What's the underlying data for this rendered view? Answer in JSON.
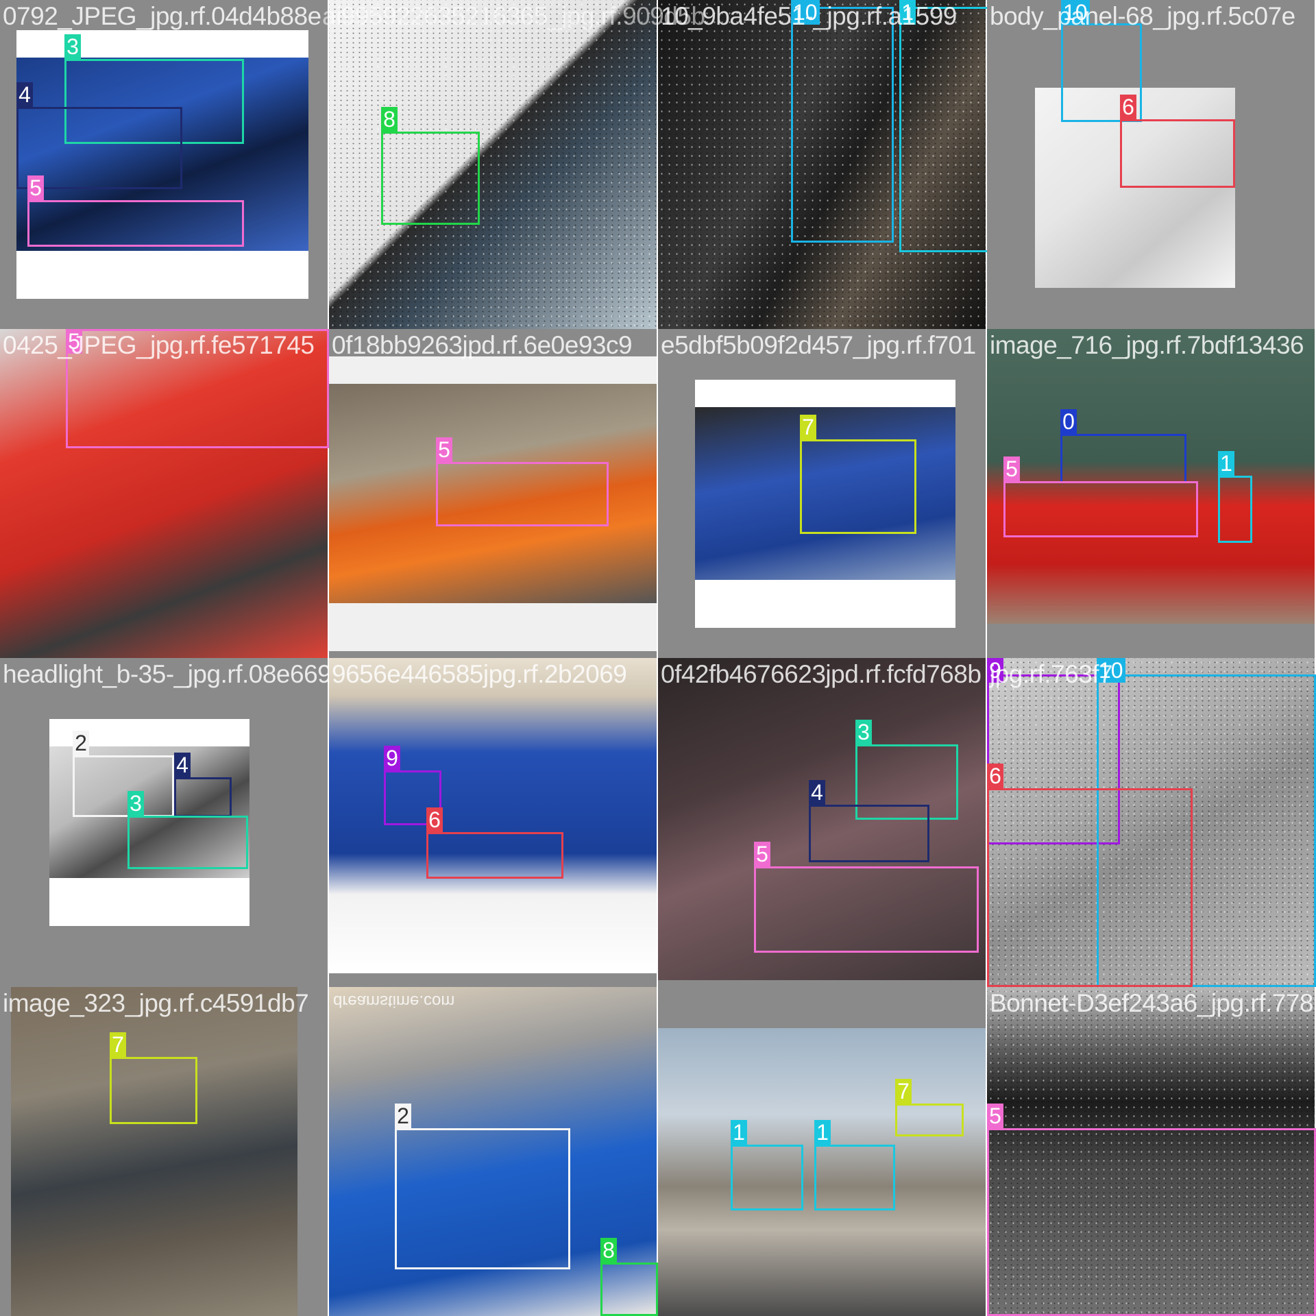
{
  "mosaic": {
    "tiles": [
      {
        "filename": "0792_JPEG_jpg.rf.04d4b88e",
        "overlap_text": "ai995922635216365_jpg.rf.909d5b",
        "detections": [
          {
            "class_id": "3",
            "color": "#1ed6a6"
          },
          {
            "class_id": "4",
            "color": "#1e2a6e"
          },
          {
            "class_id": "5",
            "color": "#f06cd0"
          }
        ]
      },
      {
        "filename": "",
        "detections": [
          {
            "class_id": "8",
            "color": "#22d64a"
          }
        ]
      },
      {
        "filename": "10_9ba4fe51-_jpg.rf.a1599",
        "detections": [
          {
            "class_id": "10",
            "color": "#19b4e6"
          },
          {
            "class_id": "1",
            "color": "#19c8e0"
          }
        ]
      },
      {
        "filename": "body_panel-68_jpg.rf.5c07e",
        "detections": [
          {
            "class_id": "10",
            "color": "#19b4e6"
          },
          {
            "class_id": "6",
            "color": "#e6404e"
          }
        ]
      },
      {
        "filename": "0425_JPEG_jpg.rf.fe571745",
        "detections": [
          {
            "class_id": "5",
            "color": "#f06cd0"
          }
        ]
      },
      {
        "filename": "0f18bb9263jpd.rf.6e0e93c9",
        "detections": [
          {
            "class_id": "5",
            "color": "#f06cd0"
          }
        ]
      },
      {
        "filename": "e5dbf5b09f2d457_jpg.rf.f701",
        "detections": [
          {
            "class_id": "7",
            "color": "#c8e01e"
          }
        ]
      },
      {
        "filename": "image_716_jpg.rf.7bdf13436",
        "detections": [
          {
            "class_id": "0",
            "color": "#1e3ccc"
          },
          {
            "class_id": "5",
            "color": "#f06cd0"
          },
          {
            "class_id": "1",
            "color": "#19c8e0"
          }
        ]
      },
      {
        "filename": "headlight_b-35-_jpg.rf.08e669",
        "detections": [
          {
            "class_id": "2",
            "color": "#f5f5f5"
          },
          {
            "class_id": "4",
            "color": "#1e2a6e"
          },
          {
            "class_id": "3",
            "color": "#1ed6a6"
          }
        ]
      },
      {
        "filename": "9656e446585jpg.rf.2b2069",
        "detections": [
          {
            "class_id": "9",
            "color": "#a018e0"
          },
          {
            "class_id": "6",
            "color": "#e6404e"
          }
        ]
      },
      {
        "filename": "0f42fb4676623jpd.rf.fcfd768b",
        "detections": [
          {
            "class_id": "3",
            "color": "#1ed6a6"
          },
          {
            "class_id": "4",
            "color": "#1e2a6e"
          },
          {
            "class_id": "5",
            "color": "#f06cd0"
          }
        ]
      },
      {
        "filename": "jpg.rf.763f7",
        "detections": [
          {
            "class_id": "9",
            "color": "#a018e0"
          },
          {
            "class_id": "10",
            "color": "#19b4e6"
          },
          {
            "class_id": "6",
            "color": "#e6404e"
          }
        ]
      },
      {
        "filename": "image_323_jpg.rf.c4591db7",
        "detections": [
          {
            "class_id": "7",
            "color": "#c8e01e"
          }
        ]
      },
      {
        "filename": "",
        "watermark": "dreamstime.com",
        "detections": [
          {
            "class_id": "2",
            "color": "#f5f5f5"
          },
          {
            "class_id": "8",
            "color": "#22d64a"
          }
        ]
      },
      {
        "filename": "",
        "detections": [
          {
            "class_id": "1",
            "color": "#19c8e0"
          },
          {
            "class_id": "1",
            "color": "#19c8e0"
          },
          {
            "class_id": "7",
            "color": "#c8e01e"
          }
        ]
      },
      {
        "filename": "Bonnet-D3ef243a6_jpg.rf.778",
        "detections": [
          {
            "class_id": "5",
            "color": "#f06cd0"
          }
        ]
      }
    ]
  }
}
